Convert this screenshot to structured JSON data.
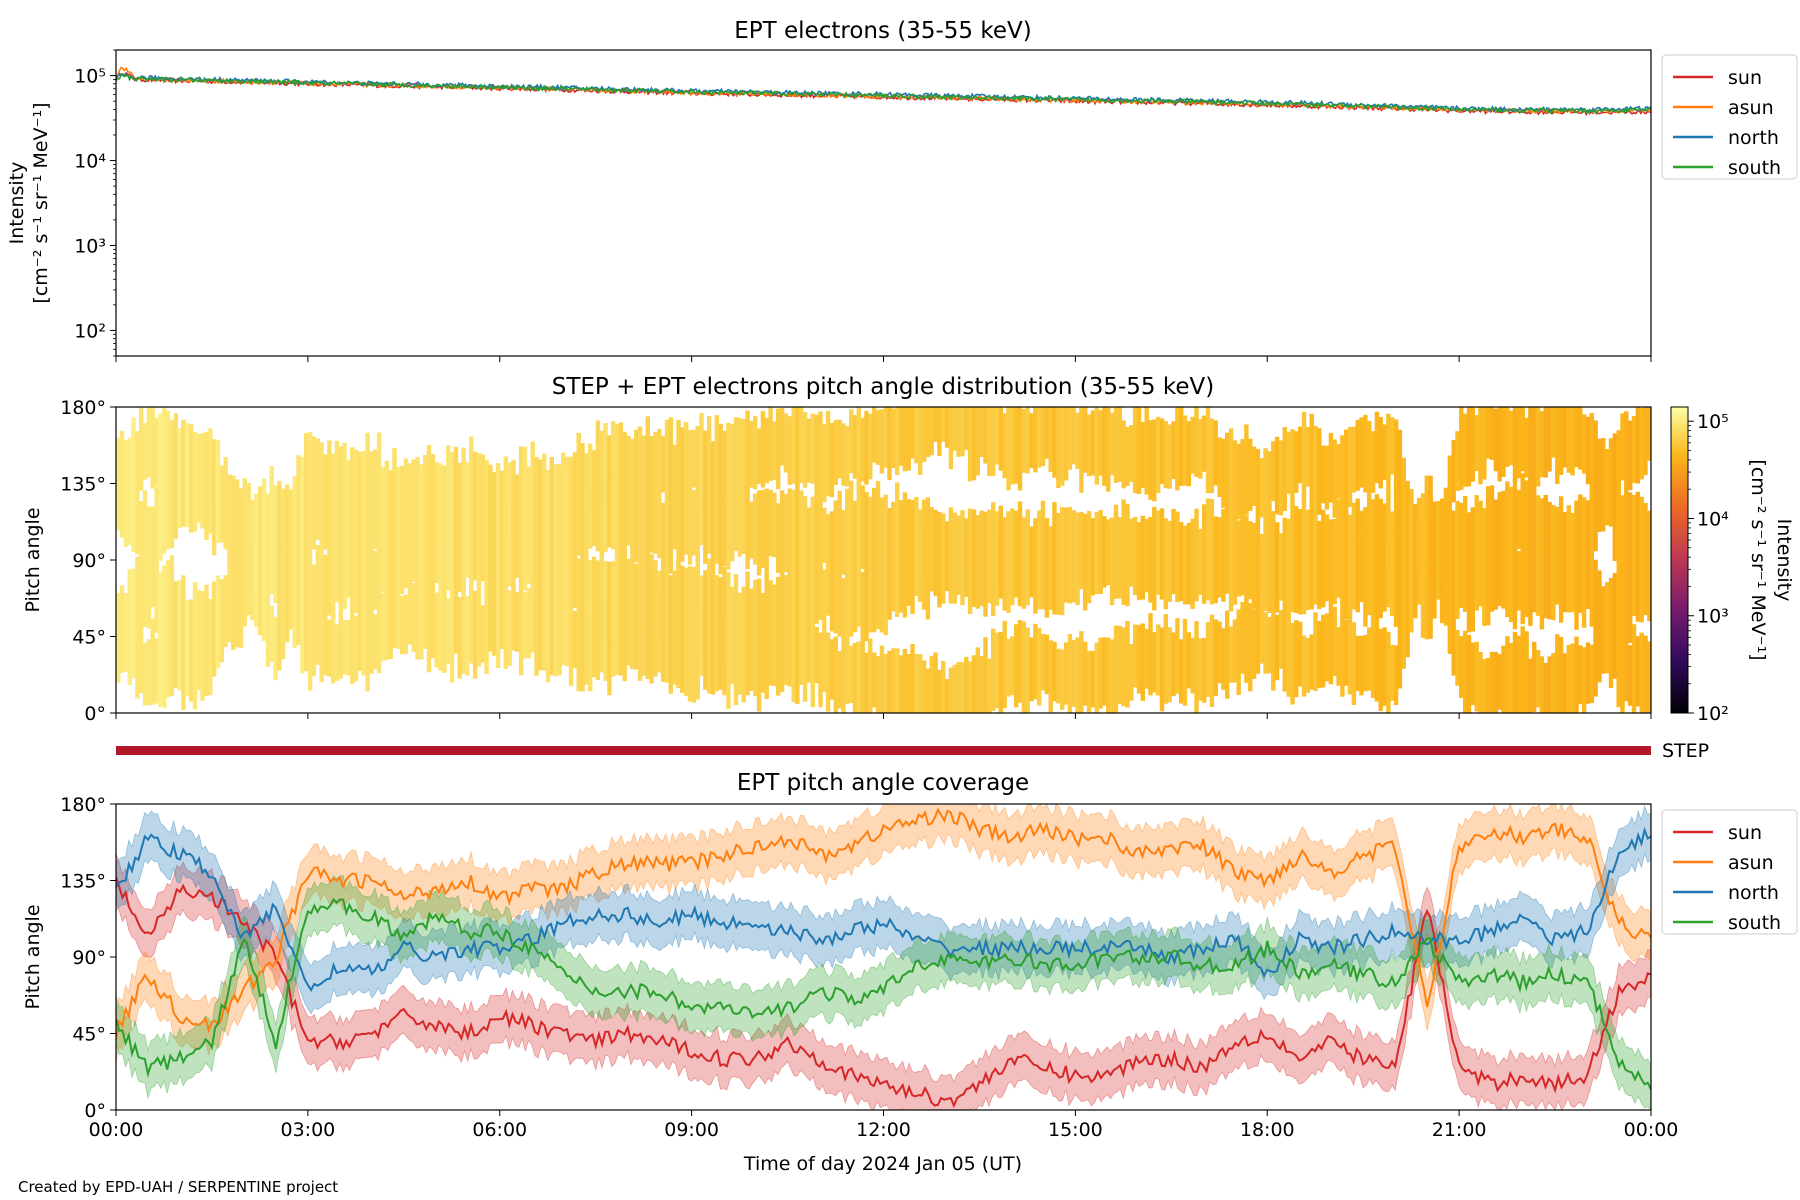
{
  "credit": "Created by EPD-UAH / SERPENTINE project",
  "time_axis": {
    "xlabel": "Time of day 2024 Jan 05 (UT)",
    "tick_labels": [
      "00:00",
      "03:00",
      "06:00",
      "09:00",
      "12:00",
      "15:00",
      "18:00",
      "21:00",
      "00:00"
    ],
    "tick_hours": [
      0,
      3,
      6,
      9,
      12,
      15,
      18,
      21,
      24
    ]
  },
  "panel1": {
    "title": "EPT electrons (35-55 keV)",
    "ylabel_line1": "Intensity",
    "ylabel_line2": "[cm⁻² s⁻¹ sr⁻¹ MeV⁻¹]",
    "ytick_labels": [
      "10²",
      "10³",
      "10⁴",
      "10⁵"
    ]
  },
  "panel2": {
    "title": "STEP + EPT electrons pitch angle distribution (35-55 keV)",
    "ylabel": "Pitch angle",
    "ytick_labels": [
      "0°",
      "45°",
      "90°",
      "135°",
      "180°"
    ],
    "colorbar": {
      "label_line1": "Intensity",
      "label_line2": "[cm⁻² s⁻¹ sr⁻¹ MeV⁻¹]",
      "tick_labels": [
        "10²",
        "10³",
        "10⁴",
        "10⁵"
      ],
      "colors": [
        "#000004",
        "#320a5e",
        "#781c6d",
        "#bc3754",
        "#ed6925",
        "#fbb61a",
        "#fcffa4"
      ]
    }
  },
  "step_bar": {
    "label": "STEP",
    "color": "#b2182b"
  },
  "panel3": {
    "title": "EPT pitch angle coverage",
    "ylabel": "Pitch angle",
    "ytick_labels": [
      "0°",
      "45°",
      "90°",
      "135°",
      "180°"
    ]
  },
  "legend_labels": [
    "sun",
    "asun",
    "north",
    "south"
  ],
  "series_colors": {
    "sun": "#d62728",
    "asun": "#ff7f0e",
    "north": "#1f77b4",
    "south": "#2ca02c"
  },
  "chart_data": [
    {
      "type": "line",
      "title": "EPT electrons (35-55 keV)",
      "xlabel": "Time of day 2024 Jan 05 (UT)",
      "ylabel": "Intensity [cm⁻² s⁻¹ sr⁻¹ MeV⁻¹]",
      "yscale": "log",
      "ylim": [
        50,
        200000
      ],
      "xlim_hours": [
        0,
        24
      ],
      "x_hours": [
        0,
        0.1,
        0.3,
        1,
        2,
        3,
        4,
        5,
        6,
        7,
        8,
        9,
        10,
        11,
        12,
        13,
        14,
        15,
        16,
        17,
        18,
        19,
        20,
        21,
        22,
        23,
        24
      ],
      "series": [
        {
          "name": "sun",
          "values": [
            90000,
            110000,
            90000,
            87000,
            84000,
            80000,
            77000,
            74000,
            71000,
            68000,
            65000,
            62000,
            60000,
            58000,
            56000,
            54000,
            52000,
            50000,
            48500,
            47000,
            45000,
            43000,
            41000,
            38500,
            37500,
            37000,
            37500
          ]
        },
        {
          "name": "asun",
          "values": [
            95000,
            125000,
            93000,
            88000,
            85000,
            81000,
            78000,
            75000,
            72000,
            69000,
            66000,
            63000,
            61000,
            59000,
            57000,
            55000,
            53000,
            51000,
            49500,
            48000,
            46000,
            44000,
            42000,
            39500,
            38500,
            38000,
            38500
          ]
        },
        {
          "name": "north",
          "values": [
            93000,
            100000,
            95000,
            92000,
            88000,
            84000,
            81000,
            78000,
            75000,
            72000,
            69000,
            66000,
            64000,
            62000,
            60000,
            58000,
            56000,
            54000,
            52000,
            50500,
            48500,
            46500,
            44000,
            41000,
            40000,
            40000,
            41000
          ]
        },
        {
          "name": "south",
          "values": [
            91000,
            98000,
            92000,
            89000,
            86000,
            82000,
            79000,
            76000,
            73000,
            70000,
            67000,
            64000,
            62000,
            60000,
            58000,
            56000,
            54000,
            52000,
            50500,
            49000,
            47000,
            45000,
            42500,
            40000,
            39000,
            38500,
            39500
          ]
        }
      ],
      "legend": "upper right outside"
    },
    {
      "type": "heatmap",
      "title": "STEP + EPT electrons pitch angle distribution (35-55 keV)",
      "xlabel": "Time of day 2024 Jan 05 (UT)",
      "ylabel": "Pitch angle",
      "ylim": [
        0,
        180
      ],
      "colorbar_scale": "log",
      "colorbar_range": [
        100,
        140000
      ],
      "x_hours": [
        0,
        2,
        4,
        6,
        8,
        10,
        12,
        14,
        16,
        18,
        20,
        22,
        24
      ],
      "intensity": [
        95000,
        90000,
        85000,
        80000,
        70000,
        62000,
        56000,
        52000,
        49000,
        46000,
        42000,
        38000,
        36000
      ]
    },
    {
      "type": "line",
      "title": "EPT pitch angle coverage",
      "xlabel": "Time of day 2024 Jan 05 (UT)",
      "ylabel": "Pitch angle",
      "ylim": [
        0,
        180
      ],
      "xlim_hours": [
        0,
        24
      ],
      "x_hours": [
        0,
        0.5,
        1,
        1.5,
        2,
        2.5,
        3,
        3.5,
        4,
        4.5,
        5,
        5.5,
        6,
        6.5,
        7,
        7.5,
        8,
        8.5,
        9,
        9.5,
        10,
        10.5,
        11,
        11.5,
        12,
        12.5,
        13,
        13.5,
        14,
        14.5,
        15,
        15.5,
        16,
        16.5,
        17,
        17.5,
        18,
        18.5,
        19,
        19.5,
        20,
        20.5,
        21,
        21.5,
        22,
        22.5,
        23,
        23.5,
        24
      ],
      "series": [
        {
          "name": "sun",
          "values": [
            135,
            100,
            130,
            125,
            110,
            90,
            40,
            40,
            45,
            55,
            50,
            45,
            55,
            50,
            45,
            40,
            45,
            40,
            35,
            30,
            30,
            40,
            30,
            20,
            15,
            10,
            5,
            15,
            30,
            25,
            20,
            20,
            30,
            30,
            25,
            40,
            45,
            30,
            40,
            30,
            25,
            120,
            25,
            15,
            20,
            15,
            20,
            70,
            80
          ]
        },
        {
          "name": "asun",
          "values": [
            45,
            80,
            55,
            50,
            70,
            90,
            140,
            135,
            135,
            125,
            130,
            135,
            125,
            130,
            130,
            140,
            145,
            145,
            145,
            150,
            155,
            160,
            150,
            155,
            165,
            170,
            175,
            165,
            160,
            165,
            160,
            160,
            150,
            155,
            155,
            140,
            135,
            150,
            140,
            150,
            155,
            60,
            155,
            165,
            160,
            165,
            160,
            110,
            100
          ]
        },
        {
          "name": "north",
          "values": [
            130,
            160,
            150,
            140,
            100,
            120,
            70,
            85,
            80,
            95,
            90,
            95,
            95,
            100,
            110,
            115,
            115,
            110,
            115,
            110,
            110,
            105,
            100,
            105,
            110,
            100,
            95,
            95,
            95,
            95,
            95,
            95,
            95,
            90,
            95,
            100,
            80,
            100,
            95,
            100,
            105,
            100,
            100,
            105,
            115,
            100,
            105,
            150,
            165
          ]
        },
        {
          "name": "south",
          "values": [
            50,
            25,
            30,
            40,
            100,
            40,
            120,
            120,
            115,
            100,
            115,
            105,
            105,
            95,
            80,
            70,
            70,
            70,
            60,
            60,
            55,
            60,
            70,
            65,
            70,
            85,
            90,
            85,
            90,
            85,
            85,
            90,
            90,
            90,
            85,
            85,
            95,
            80,
            85,
            80,
            75,
            100,
            75,
            80,
            75,
            80,
            75,
            30,
            15
          ]
        }
      ],
      "legend": "upper right outside"
    }
  ]
}
